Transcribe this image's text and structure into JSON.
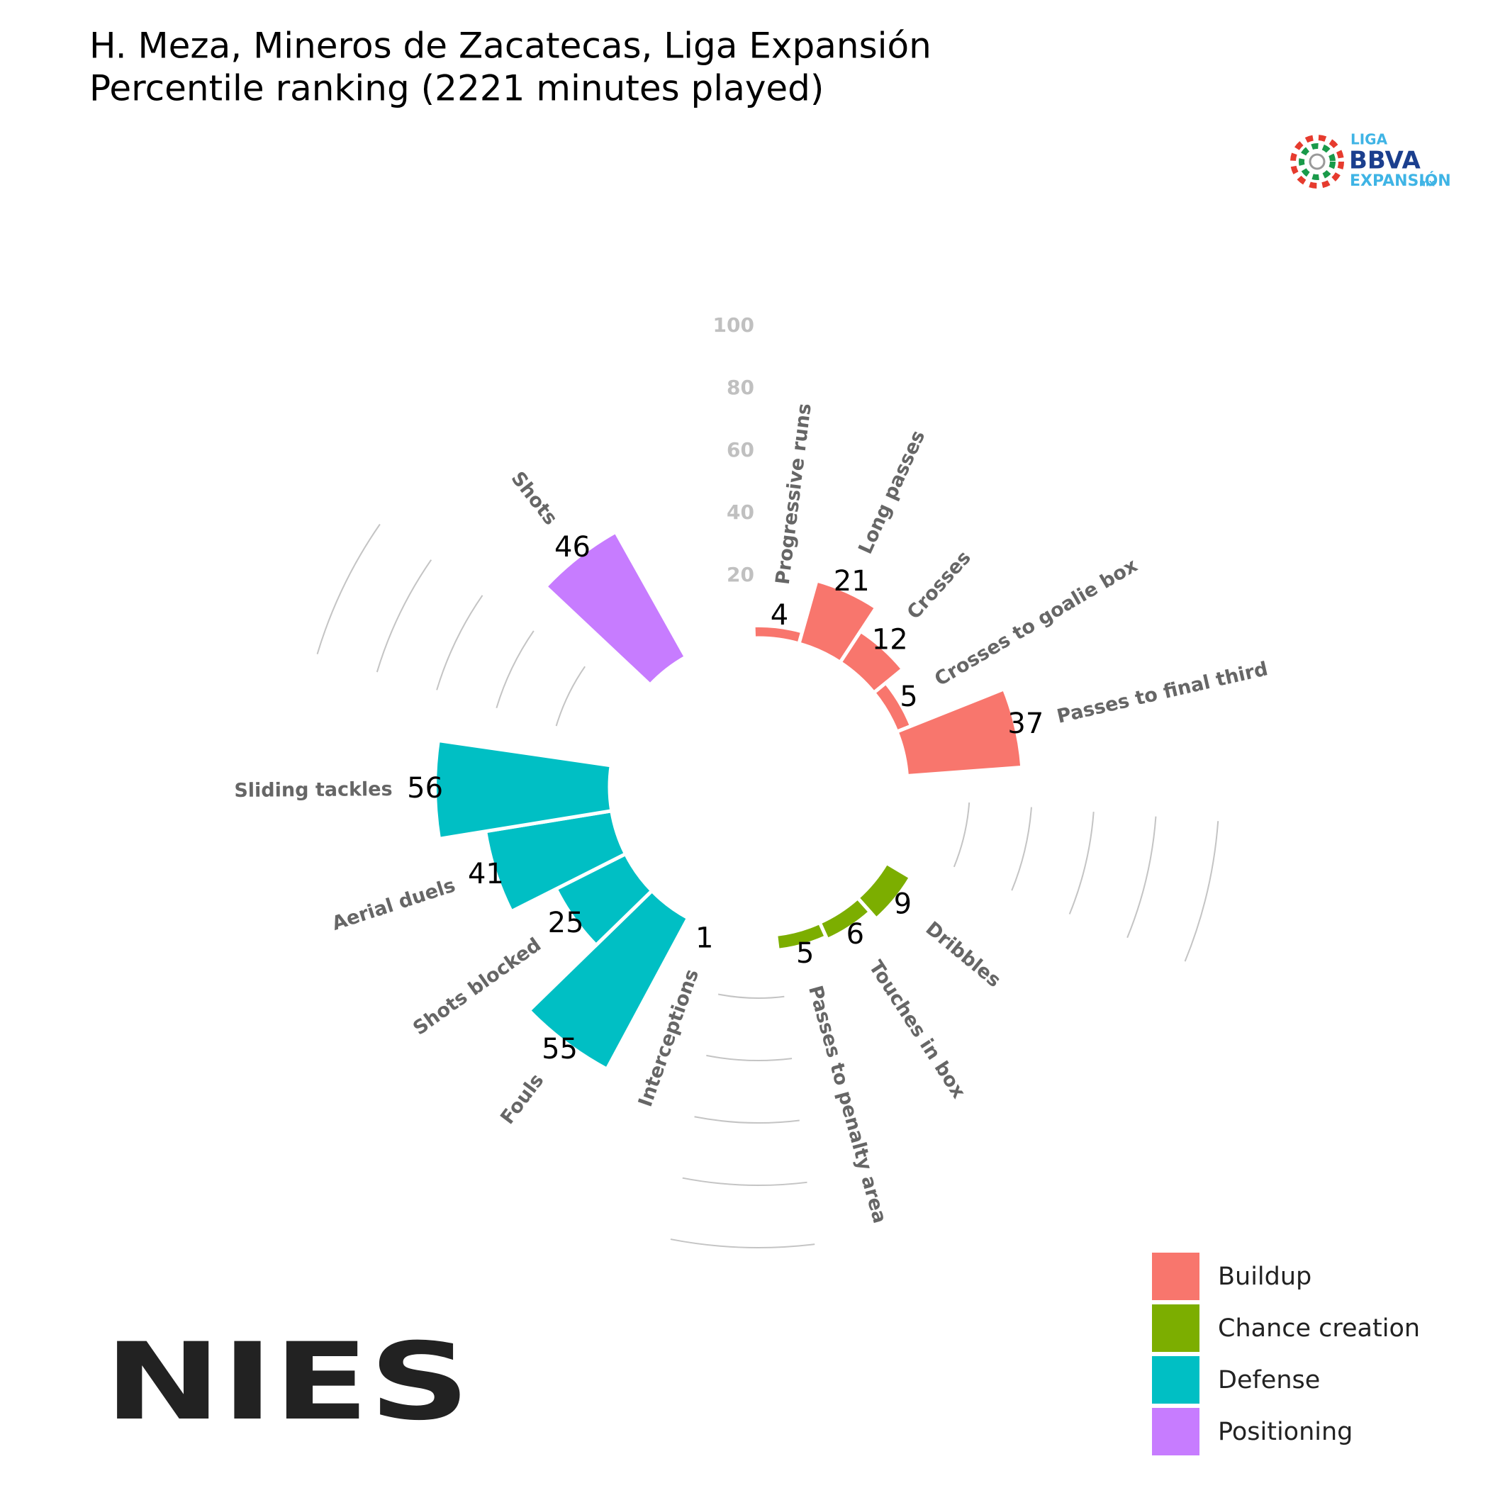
{
  "chart_data": {
    "type": "polar_bar",
    "title": "H. Meza, Mineros de Zacatecas, Liga Expansión",
    "subtitle": "Percentile ranking (2221 minutes played)",
    "categories": [
      "Progressive runs",
      "Long passes",
      "Crosses",
      "Crosses to goalie box",
      "Passes to final third",
      "Dribbles",
      "Touches in box",
      "Passes to penalty area",
      "Interceptions",
      "Fouls",
      "Shots blocked",
      "Aerial duels",
      "Sliding tackles",
      "Shots"
    ],
    "series": [
      {
        "name": "Buildup",
        "color": "#F8766D",
        "values": [
          4,
          21,
          12,
          5,
          37,
          null,
          null,
          null,
          null,
          null,
          null,
          null,
          null,
          null
        ]
      },
      {
        "name": "Chance creation",
        "color": "#7CAE00",
        "values": [
          null,
          null,
          null,
          null,
          null,
          9,
          6,
          5,
          null,
          null,
          null,
          null,
          null,
          null
        ]
      },
      {
        "name": "Defense",
        "color": "#00BFC4",
        "values": [
          null,
          null,
          null,
          null,
          null,
          null,
          null,
          null,
          1,
          55,
          25,
          41,
          56,
          null
        ]
      },
      {
        "name": "Positioning",
        "color": "#C77CFF",
        "values": [
          null,
          null,
          null,
          null,
          null,
          null,
          null,
          null,
          null,
          null,
          null,
          null,
          null,
          46
        ]
      }
    ],
    "ylim": [
      0,
      100
    ],
    "yticks": [
      20,
      40,
      60,
      80,
      100
    ],
    "grid": true,
    "legend": "bottom-right"
  },
  "logos": {
    "league": [
      "LIGA",
      "BBVA",
      "EXPANSIÓN",
      "mx"
    ],
    "brand": "NIES"
  }
}
